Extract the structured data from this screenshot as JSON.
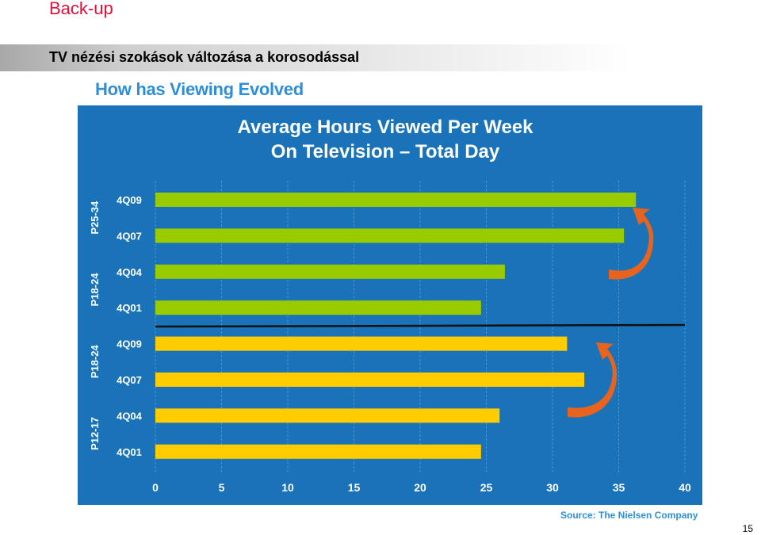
{
  "slide": {
    "label": "Back-up",
    "title": "TV nézési szokások változása a korosodással",
    "page_number": "15"
  },
  "figure": {
    "heading": "How has Viewing Evolved",
    "source": "Source: The Nielsen Company"
  },
  "colors": {
    "panel_bg": "#1a73b8",
    "green_bar": "#99cc00",
    "yellow_bar": "#ffcc00",
    "arrow": "#e8641e",
    "label_text": "#ffffff"
  },
  "chart_data": {
    "type": "bar",
    "orientation": "horizontal",
    "title": [
      "Average Hours Viewed Per Week",
      "On Television – Total Day"
    ],
    "xlim": [
      0,
      40
    ],
    "x_ticks": [
      "0",
      "5",
      "10",
      "15",
      "20",
      "25",
      "30",
      "35",
      "40"
    ],
    "grid": true,
    "groups": [
      {
        "label": "P25-34",
        "color": "green",
        "bars": [
          {
            "label": "4Q09",
            "value": 36.3
          },
          {
            "label": "4Q07",
            "value": 35.4
          }
        ]
      },
      {
        "label": "P18-24",
        "color": "green",
        "bars": [
          {
            "label": "4Q04",
            "value": 26.4
          },
          {
            "label": "4Q01",
            "value": 24.6
          }
        ]
      },
      {
        "label": "P18-24",
        "color": "yellow",
        "bars": [
          {
            "label": "4Q09",
            "value": 31.1
          },
          {
            "label": "4Q07",
            "value": 32.4
          }
        ]
      },
      {
        "label": "P12-17",
        "color": "yellow",
        "bars": [
          {
            "label": "4Q04",
            "value": 26.0
          },
          {
            "label": "4Q01",
            "value": 24.6
          }
        ]
      }
    ]
  }
}
